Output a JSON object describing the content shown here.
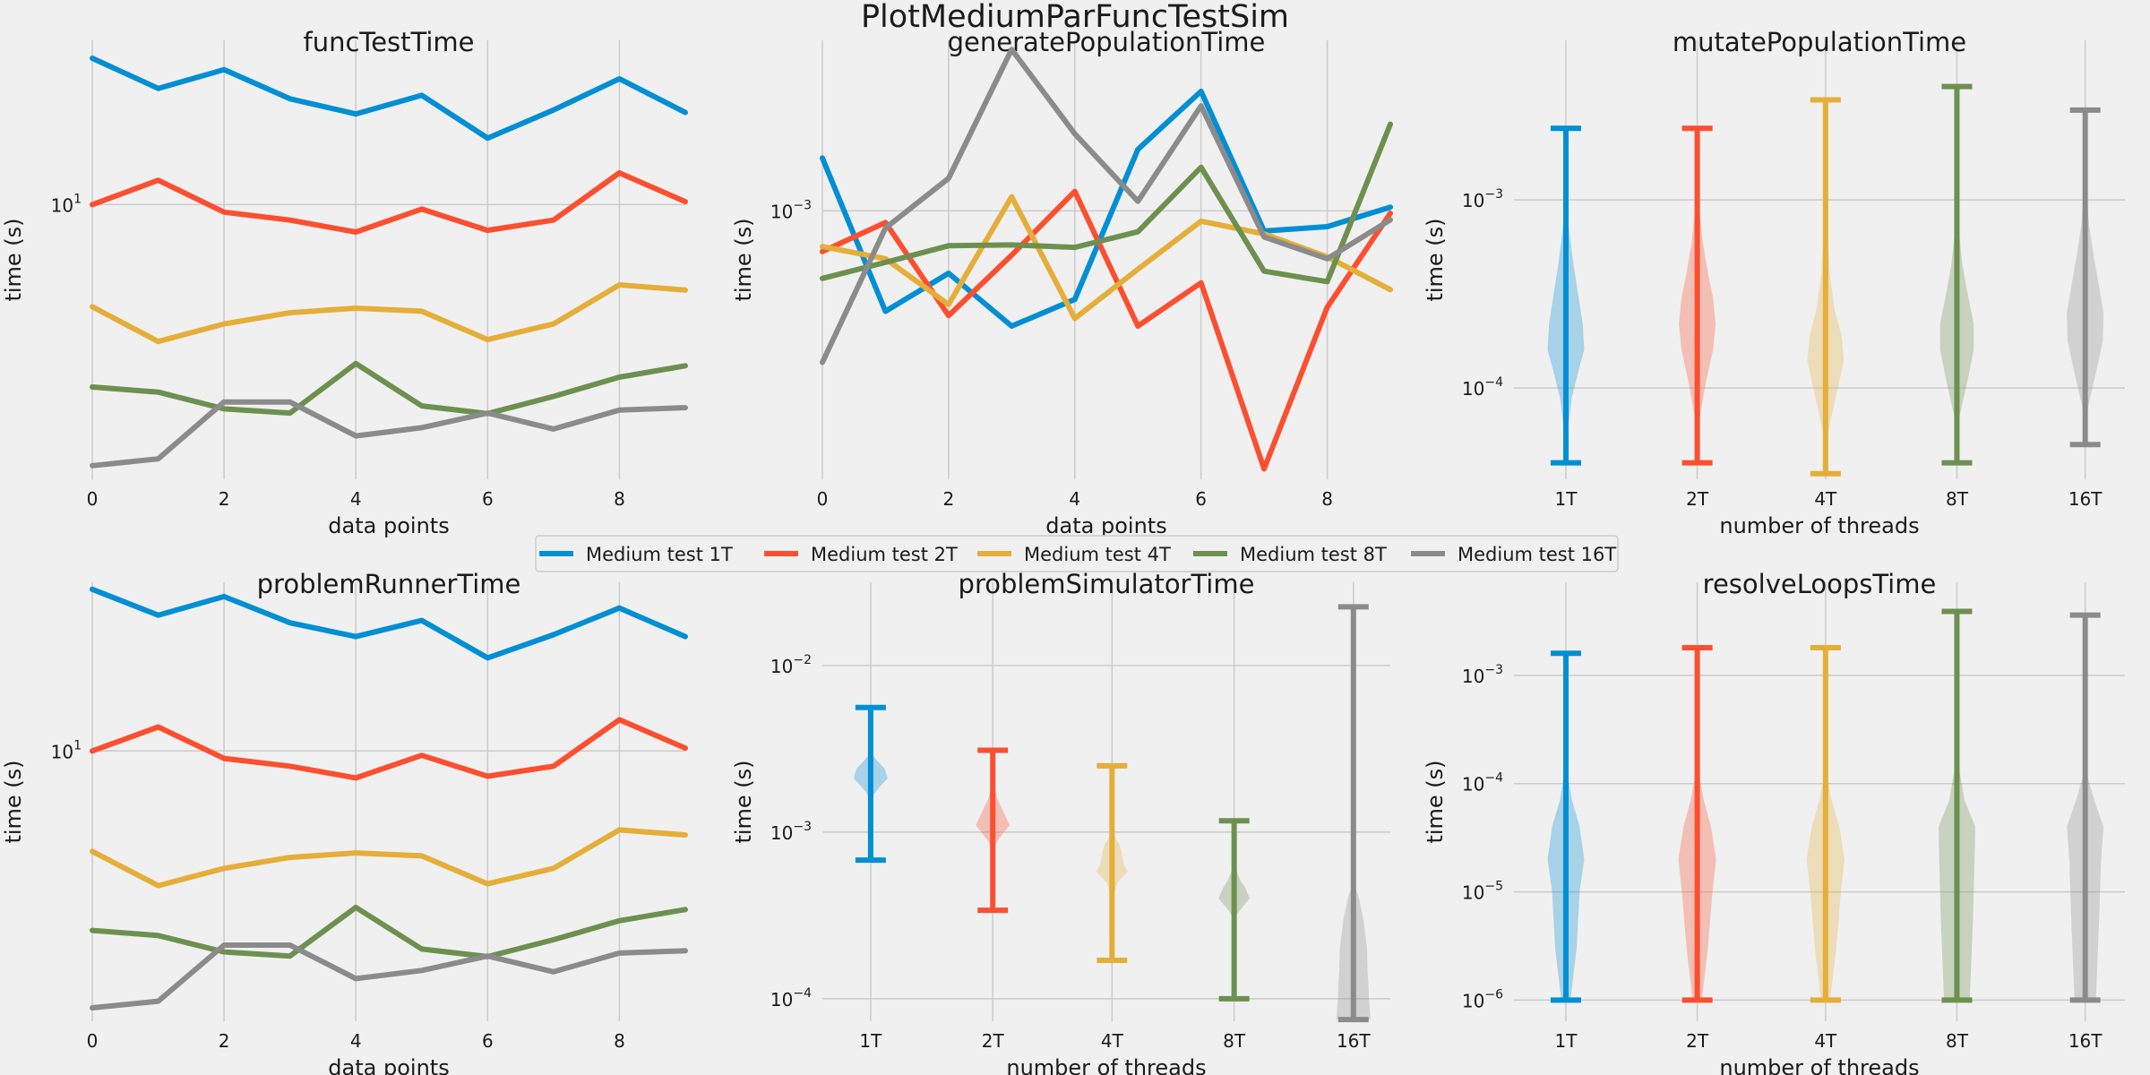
{
  "figure_title": "PlotMediumParFuncTestSim",
  "colors": [
    "#008fd5",
    "#fc4f30",
    "#e5ae38",
    "#6d904f",
    "#8b8b8b"
  ],
  "legend": [
    "Medium test 1T",
    "Medium test 2T",
    "Medium test 4T",
    "Medium test 8T",
    "Medium test 16T"
  ],
  "chart_data": [
    {
      "id": "p1",
      "type": "line",
      "title": "funcTestTime",
      "xlabel": "data points",
      "ylabel": "time (s)",
      "yscale": "log",
      "xlim": [
        0,
        9
      ],
      "ylim": [
        1.55,
        30.5
      ],
      "xticks": [
        0,
        2,
        4,
        6,
        8
      ],
      "yticks": [
        {
          "v": 10,
          "base": "10",
          "exp": "1"
        }
      ],
      "x": [
        0,
        1,
        2,
        3,
        4,
        5,
        6,
        7,
        8,
        9
      ],
      "series": [
        {
          "name": "Medium test 1T",
          "values": [
            27,
            22,
            25,
            20.5,
            18.5,
            21,
            15.7,
            19,
            23.5,
            18.7
          ]
        },
        {
          "name": "Medium test 2T",
          "values": [
            10,
            11.8,
            9.5,
            9.0,
            8.3,
            9.7,
            8.4,
            9.0,
            12.4,
            10.2
          ]
        },
        {
          "name": "Medium test 4T",
          "values": [
            5.0,
            3.95,
            4.45,
            4.8,
            4.95,
            4.85,
            4.0,
            4.45,
            5.8,
            5.6
          ]
        },
        {
          "name": "Medium test 8T",
          "values": [
            2.9,
            2.8,
            2.5,
            2.43,
            3.4,
            2.55,
            2.42,
            2.72,
            3.1,
            3.35
          ]
        },
        {
          "name": "Medium test 16T",
          "values": [
            1.7,
            1.78,
            2.62,
            2.62,
            2.08,
            2.2,
            2.43,
            2.18,
            2.48,
            2.52
          ]
        }
      ]
    },
    {
      "id": "p2",
      "type": "line",
      "title": "generatePopulationTime",
      "xlabel": "data points",
      "ylabel": "time (s)",
      "yscale": "log",
      "xlim": [
        0,
        9
      ],
      "ylim": [
        0.000115,
        0.00395
      ],
      "xticks": [
        0,
        2,
        4,
        6,
        8
      ],
      "yticks": [
        {
          "v": 0.001,
          "base": "10",
          "exp": "−3"
        }
      ],
      "x": [
        0,
        1,
        2,
        3,
        4,
        5,
        6,
        7,
        8,
        9
      ],
      "series": [
        {
          "name": "Medium test 1T",
          "values": [
            0.00153,
            0.000445,
            0.000605,
            0.000395,
            0.00049,
            0.00164,
            0.00262,
            0.00085,
            0.00088,
            0.00103
          ]
        },
        {
          "name": "Medium test 2T",
          "values": [
            0.00072,
            0.00091,
            0.00043,
            0.0007,
            0.00117,
            0.000395,
            0.00056,
            0.000125,
            0.00046,
            0.00098
          ]
        },
        {
          "name": "Medium test 4T",
          "values": [
            0.00075,
            0.00068,
            0.00047,
            0.00112,
            0.00042,
            0.000625,
            0.00092,
            0.00083,
            0.00069,
            0.00053
          ]
        },
        {
          "name": "Medium test 8T",
          "values": [
            0.00058,
            0.00066,
            0.000755,
            0.00076,
            0.000745,
            0.000845,
            0.00142,
            0.000615,
            0.000565,
            0.00201
          ]
        },
        {
          "name": "Medium test 16T",
          "values": [
            0.000295,
            0.00087,
            0.0013,
            0.00367,
            0.00186,
            0.00108,
            0.00233,
            0.00081,
            0.00068,
            0.00093
          ]
        }
      ]
    },
    {
      "id": "p3",
      "type": "violin",
      "title": "mutatePopulationTime",
      "xlabel": "number of threads",
      "ylabel": "time (s)",
      "yscale": "log",
      "ylim": [
        3.27e-05,
        0.00705
      ],
      "categories": [
        "1T",
        "2T",
        "4T",
        "8T",
        "16T"
      ],
      "yticks": [
        {
          "v": 0.001,
          "base": "10",
          "exp": "−3"
        },
        {
          "v": 0.0001,
          "base": "10",
          "exp": "−4"
        }
      ],
      "series": [
        {
          "name": "1T",
          "min": 4e-05,
          "max": 0.0024,
          "profile": [
            [
              4e-05,
              0.0
            ],
            [
              6e-05,
              0.06
            ],
            [
              9e-05,
              0.2
            ],
            [
              0.00013,
              0.45
            ],
            [
              0.00016,
              0.6
            ],
            [
              0.00022,
              0.55
            ],
            [
              0.0003,
              0.42
            ],
            [
              0.00045,
              0.25
            ],
            [
              0.0007,
              0.1
            ],
            [
              0.001,
              0.04
            ],
            [
              0.0024,
              0.0
            ]
          ]
        },
        {
          "name": "2T",
          "min": 4e-05,
          "max": 0.0024,
          "profile": [
            [
              4e-05,
              0.0
            ],
            [
              7e-05,
              0.08
            ],
            [
              0.00011,
              0.3
            ],
            [
              0.00016,
              0.52
            ],
            [
              0.00022,
              0.6
            ],
            [
              0.0003,
              0.52
            ],
            [
              0.0004,
              0.36
            ],
            [
              0.0006,
              0.18
            ],
            [
              0.0009,
              0.07
            ],
            [
              0.0014,
              0.02
            ],
            [
              0.0024,
              0.0
            ]
          ]
        },
        {
          "name": "4T",
          "min": 3.5e-05,
          "max": 0.0034,
          "profile": [
            [
              3.5e-05,
              0.0
            ],
            [
              6e-05,
              0.1
            ],
            [
              0.0001,
              0.4
            ],
            [
              0.00014,
              0.6
            ],
            [
              0.00019,
              0.52
            ],
            [
              0.00026,
              0.3
            ],
            [
              0.0004,
              0.14
            ],
            [
              0.0007,
              0.06
            ],
            [
              0.0012,
              0.02
            ],
            [
              0.0034,
              0.0
            ]
          ]
        },
        {
          "name": "8T",
          "min": 4e-05,
          "max": 0.004,
          "profile": [
            [
              4e-05,
              0.0
            ],
            [
              7e-05,
              0.08
            ],
            [
              0.00011,
              0.35
            ],
            [
              0.00016,
              0.55
            ],
            [
              0.00022,
              0.55
            ],
            [
              0.0003,
              0.38
            ],
            [
              0.00045,
              0.18
            ],
            [
              0.0007,
              0.06
            ],
            [
              0.0012,
              0.02
            ],
            [
              0.004,
              0.0
            ]
          ]
        },
        {
          "name": "16T",
          "min": 5e-05,
          "max": 0.003,
          "profile": [
            [
              5e-05,
              0.0
            ],
            [
              8e-05,
              0.1
            ],
            [
              0.00013,
              0.4
            ],
            [
              0.00018,
              0.58
            ],
            [
              0.00025,
              0.6
            ],
            [
              0.00035,
              0.45
            ],
            [
              0.0005,
              0.28
            ],
            [
              0.00075,
              0.12
            ],
            [
              0.0012,
              0.03
            ],
            [
              0.003,
              0.0
            ]
          ]
        }
      ]
    },
    {
      "id": "p4",
      "type": "line",
      "title": "problemRunnerTime",
      "xlabel": "data points",
      "ylabel": "time (s)",
      "yscale": "log",
      "xlim": [
        0,
        9
      ],
      "ylim": [
        1.55,
        32
      ],
      "xticks": [
        0,
        2,
        4,
        6,
        8
      ],
      "yticks": [
        {
          "v": 10,
          "base": "10",
          "exp": "1"
        }
      ],
      "x": [
        0,
        1,
        2,
        3,
        4,
        5,
        6,
        7,
        8,
        9
      ],
      "series": [
        {
          "name": "Medium test 1T",
          "values": [
            30.5,
            25.5,
            29,
            24.2,
            22,
            24.6,
            19,
            22.3,
            26.8,
            22
          ]
        },
        {
          "name": "Medium test 2T",
          "values": [
            10,
            11.8,
            9.5,
            9.0,
            8.3,
            9.7,
            8.4,
            9.0,
            12.4,
            10.2
          ]
        },
        {
          "name": "Medium test 4T",
          "values": [
            5.0,
            3.95,
            4.45,
            4.8,
            4.95,
            4.85,
            4.0,
            4.45,
            5.8,
            5.6
          ]
        },
        {
          "name": "Medium test 8T",
          "values": [
            2.9,
            2.8,
            2.5,
            2.43,
            3.4,
            2.55,
            2.42,
            2.72,
            3.1,
            3.35
          ]
        },
        {
          "name": "Medium test 16T",
          "values": [
            1.7,
            1.78,
            2.62,
            2.62,
            2.08,
            2.2,
            2.43,
            2.18,
            2.48,
            2.52
          ]
        }
      ]
    },
    {
      "id": "p5",
      "type": "violin",
      "title": "problemSimulatorTime",
      "xlabel": "number of threads",
      "ylabel": "time (s)",
      "yscale": "log",
      "ylim": [
        7.33e-05,
        0.0316
      ],
      "categories": [
        "1T",
        "2T",
        "4T",
        "8T",
        "16T"
      ],
      "yticks": [
        {
          "v": 0.01,
          "base": "10",
          "exp": "−2"
        },
        {
          "v": 0.001,
          "base": "10",
          "exp": "−3"
        },
        {
          "v": 0.0001,
          "base": "10",
          "exp": "−4"
        }
      ],
      "series": [
        {
          "name": "1T",
          "min": 0.00068,
          "max": 0.0056,
          "profile": [
            [
              0.0014,
              0.0
            ],
            [
              0.0017,
              0.12
            ],
            [
              0.0019,
              0.35
            ],
            [
              0.0021,
              0.6
            ],
            [
              0.0024,
              0.5
            ],
            [
              0.0027,
              0.22
            ],
            [
              0.003,
              0.0
            ]
          ]
        },
        {
          "name": "2T",
          "min": 0.00034,
          "max": 0.0031,
          "profile": [
            [
              0.0008,
              0.0
            ],
            [
              0.0009,
              0.2
            ],
            [
              0.001,
              0.4
            ],
            [
              0.0011,
              0.6
            ],
            [
              0.0013,
              0.4
            ],
            [
              0.0016,
              0.15
            ],
            [
              0.002,
              0.0
            ]
          ]
        },
        {
          "name": "4T",
          "min": 0.00017,
          "max": 0.0025,
          "profile": [
            [
              0.0004,
              0.0
            ],
            [
              0.0005,
              0.2
            ],
            [
              0.00058,
              0.55
            ],
            [
              0.00065,
              0.4
            ],
            [
              0.00075,
              0.35
            ],
            [
              0.00085,
              0.25
            ],
            [
              0.001,
              0.0
            ]
          ]
        },
        {
          "name": "8T",
          "min": 0.0001,
          "max": 0.00117,
          "profile": [
            [
              0.0003,
              0.0
            ],
            [
              0.00034,
              0.2
            ],
            [
              0.0004,
              0.55
            ],
            [
              0.00046,
              0.4
            ],
            [
              0.00052,
              0.2
            ],
            [
              0.0006,
              0.08
            ],
            [
              0.0007,
              0.0
            ]
          ]
        },
        {
          "name": "16T",
          "min": 7.5e-05,
          "max": 0.0225,
          "profile": [
            [
              7.5e-05,
              0.6
            ],
            [
              0.0001,
              0.55
            ],
            [
              0.00015,
              0.5
            ],
            [
              0.0002,
              0.48
            ],
            [
              0.0003,
              0.35
            ],
            [
              0.0004,
              0.2
            ],
            [
              0.0005,
              0.0
            ]
          ]
        }
      ]
    },
    {
      "id": "p6",
      "type": "violin",
      "title": "resolveLoopsTime",
      "xlabel": "number of threads",
      "ylabel": "time (s)",
      "yscale": "log",
      "ylim": [
        6.38e-07,
        0.00724
      ],
      "categories": [
        "1T",
        "2T",
        "4T",
        "8T",
        "16T"
      ],
      "yticks": [
        {
          "v": 0.001,
          "base": "10",
          "exp": "−3"
        },
        {
          "v": 0.0001,
          "base": "10",
          "exp": "−4"
        },
        {
          "v": 1e-05,
          "base": "10",
          "exp": "−5"
        },
        {
          "v": 1e-06,
          "base": "10",
          "exp": "−6"
        }
      ],
      "series": [
        {
          "name": "1T",
          "min": 1e-06,
          "max": 0.0016,
          "profile": [
            [
              1e-06,
              0.15
            ],
            [
              3e-06,
              0.35
            ],
            [
              1e-05,
              0.45
            ],
            [
              2e-05,
              0.6
            ],
            [
              4e-05,
              0.45
            ],
            [
              7e-05,
              0.2
            ],
            [
              0.00012,
              0.06
            ],
            [
              0.0003,
              0.0
            ]
          ]
        },
        {
          "name": "2T",
          "min": 1e-06,
          "max": 0.0018,
          "profile": [
            [
              1e-06,
              0.15
            ],
            [
              3e-06,
              0.35
            ],
            [
              1e-05,
              0.5
            ],
            [
              2e-05,
              0.62
            ],
            [
              4e-05,
              0.45
            ],
            [
              7e-05,
              0.22
            ],
            [
              0.00012,
              0.06
            ],
            [
              0.0003,
              0.0
            ]
          ]
        },
        {
          "name": "4T",
          "min": 1e-06,
          "max": 0.0018,
          "profile": [
            [
              1e-06,
              0.15
            ],
            [
              3e-06,
              0.35
            ],
            [
              1e-05,
              0.5
            ],
            [
              2e-05,
              0.62
            ],
            [
              4e-05,
              0.45
            ],
            [
              7e-05,
              0.2
            ],
            [
              0.00012,
              0.05
            ],
            [
              0.0003,
              0.0
            ]
          ]
        },
        {
          "name": "8T",
          "min": 1e-06,
          "max": 0.0039,
          "profile": [
            [
              1e-06,
              0.42
            ],
            [
              5e-06,
              0.52
            ],
            [
              2e-05,
              0.58
            ],
            [
              4e-05,
              0.6
            ],
            [
              7e-05,
              0.25
            ],
            [
              0.00015,
              0.05
            ],
            [
              0.0003,
              0.0
            ]
          ]
        },
        {
          "name": "16T",
          "min": 1e-06,
          "max": 0.0036,
          "profile": [
            [
              1e-06,
              0.35
            ],
            [
              5e-06,
              0.45
            ],
            [
              2e-05,
              0.52
            ],
            [
              4e-05,
              0.6
            ],
            [
              7e-05,
              0.3
            ],
            [
              0.00012,
              0.06
            ],
            [
              0.0003,
              0.0
            ]
          ]
        }
      ]
    }
  ]
}
